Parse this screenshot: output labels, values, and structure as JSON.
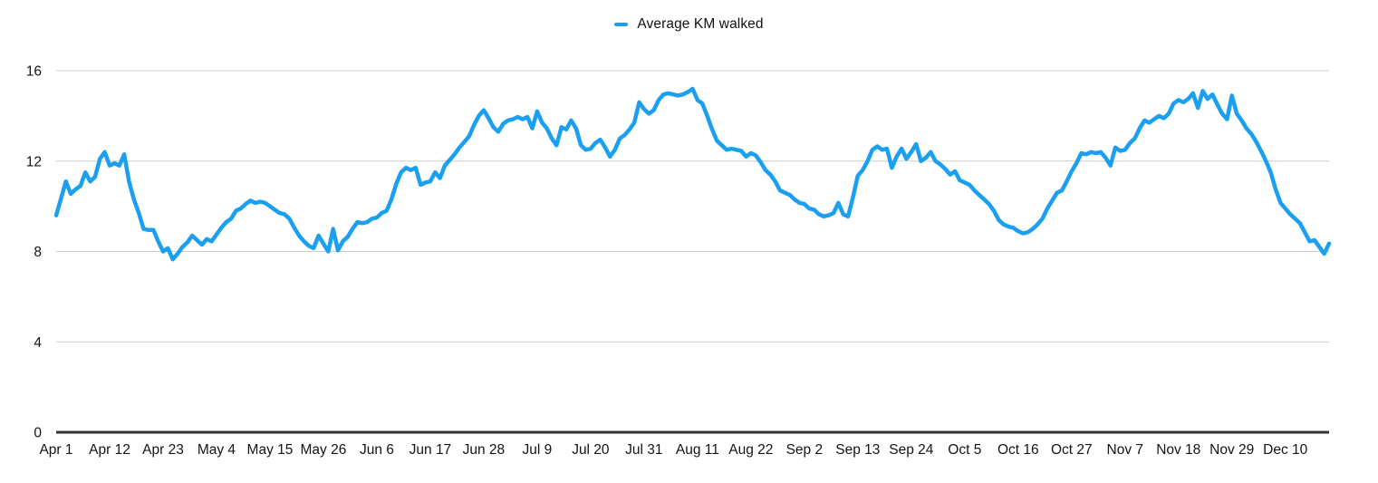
{
  "legend": {
    "label": "Average KM walked"
  },
  "colors": {
    "line": "#1b9ff0",
    "grid": "#cccccc",
    "axis": "#333333",
    "label": "#141414"
  },
  "chart_data": {
    "type": "line",
    "title": "",
    "xlabel": "",
    "ylabel": "",
    "ylim": [
      0,
      16
    ],
    "y_ticks": [
      0,
      4,
      8,
      12,
      16
    ],
    "grid": "horizontal",
    "legend_position": "top-center",
    "x_start_date": "Apr 1",
    "x_tick_interval_days": 11,
    "x_tick_labels": [
      "Apr 1",
      "Apr 12",
      "Apr 23",
      "May 4",
      "May 15",
      "May 26",
      "Jun 6",
      "Jun 17",
      "Jun 28",
      "Jul 9",
      "Jul 20",
      "Jul 31",
      "Aug 11",
      "Aug 22",
      "Sep 2",
      "Sep 13",
      "Sep 24",
      "Oct 5",
      "Oct 16",
      "Oct 27",
      "Nov 7",
      "Nov 18",
      "Nov 29",
      "Dec 10"
    ],
    "series": [
      {
        "name": "Average KM walked",
        "unit": "km",
        "values": [
          9.6,
          10.35,
          11.1,
          10.55,
          10.75,
          10.9,
          11.5,
          11.1,
          11.3,
          12.1,
          12.4,
          11.8,
          11.9,
          11.8,
          12.3,
          11.1,
          10.3,
          9.7,
          9.0,
          8.95,
          8.95,
          8.45,
          8.0,
          8.15,
          7.65,
          7.9,
          8.2,
          8.4,
          8.7,
          8.5,
          8.3,
          8.55,
          8.45,
          8.75,
          9.05,
          9.3,
          9.45,
          9.8,
          9.9,
          10.1,
          10.25,
          10.15,
          10.2,
          10.15,
          10.0,
          9.85,
          9.7,
          9.65,
          9.45,
          9.05,
          8.7,
          8.45,
          8.25,
          8.15,
          8.7,
          8.35,
          8.0,
          9.0,
          8.05,
          8.45,
          8.65,
          9.0,
          9.3,
          9.25,
          9.3,
          9.45,
          9.5,
          9.7,
          9.8,
          10.3,
          11.0,
          11.5,
          11.7,
          11.6,
          11.7,
          10.95,
          11.05,
          11.1,
          11.5,
          11.25,
          11.8,
          12.05,
          12.3,
          12.6,
          12.85,
          13.1,
          13.6,
          14.0,
          14.25,
          13.9,
          13.5,
          13.3,
          13.65,
          13.8,
          13.85,
          13.95,
          13.85,
          13.95,
          13.45,
          14.2,
          13.7,
          13.45,
          13.0,
          12.7,
          13.5,
          13.4,
          13.8,
          13.45,
          12.7,
          12.5,
          12.55,
          12.8,
          12.95,
          12.6,
          12.2,
          12.5,
          13.0,
          13.15,
          13.4,
          13.7,
          14.6,
          14.3,
          14.1,
          14.25,
          14.7,
          14.95,
          15.0,
          14.95,
          14.9,
          14.95,
          15.05,
          15.2,
          14.7,
          14.55,
          14.0,
          13.4,
          12.9,
          12.7,
          12.5,
          12.55,
          12.5,
          12.45,
          12.2,
          12.35,
          12.25,
          11.95,
          11.6,
          11.4,
          11.1,
          10.7,
          10.6,
          10.5,
          10.3,
          10.15,
          10.1,
          9.9,
          9.85,
          9.65,
          9.55,
          9.6,
          9.7,
          10.15,
          9.65,
          9.55,
          10.4,
          11.35,
          11.6,
          12.0,
          12.5,
          12.65,
          12.5,
          12.55,
          11.7,
          12.2,
          12.55,
          12.1,
          12.4,
          12.75,
          12.0,
          12.15,
          12.4,
          12.0,
          11.85,
          11.65,
          11.4,
          11.55,
          11.15,
          11.05,
          10.95,
          10.7,
          10.5,
          10.3,
          10.1,
          9.8,
          9.4,
          9.2,
          9.1,
          9.05,
          8.9,
          8.8,
          8.85,
          9.0,
          9.2,
          9.45,
          9.9,
          10.25,
          10.6,
          10.7,
          11.1,
          11.55,
          11.9,
          12.35,
          12.3,
          12.4,
          12.35,
          12.4,
          12.15,
          11.8,
          12.6,
          12.45,
          12.5,
          12.8,
          13.0,
          13.45,
          13.8,
          13.7,
          13.85,
          14.0,
          13.9,
          14.1,
          14.55,
          14.7,
          14.6,
          14.75,
          15.0,
          14.35,
          15.1,
          14.75,
          14.95,
          14.5,
          14.1,
          13.85,
          14.9,
          14.1,
          13.8,
          13.45,
          13.2,
          12.85,
          12.45,
          12.0,
          11.5,
          10.75,
          10.15,
          9.9,
          9.65,
          9.45,
          9.25,
          8.85,
          8.45,
          8.5,
          8.2,
          7.9,
          8.35
        ]
      }
    ]
  }
}
